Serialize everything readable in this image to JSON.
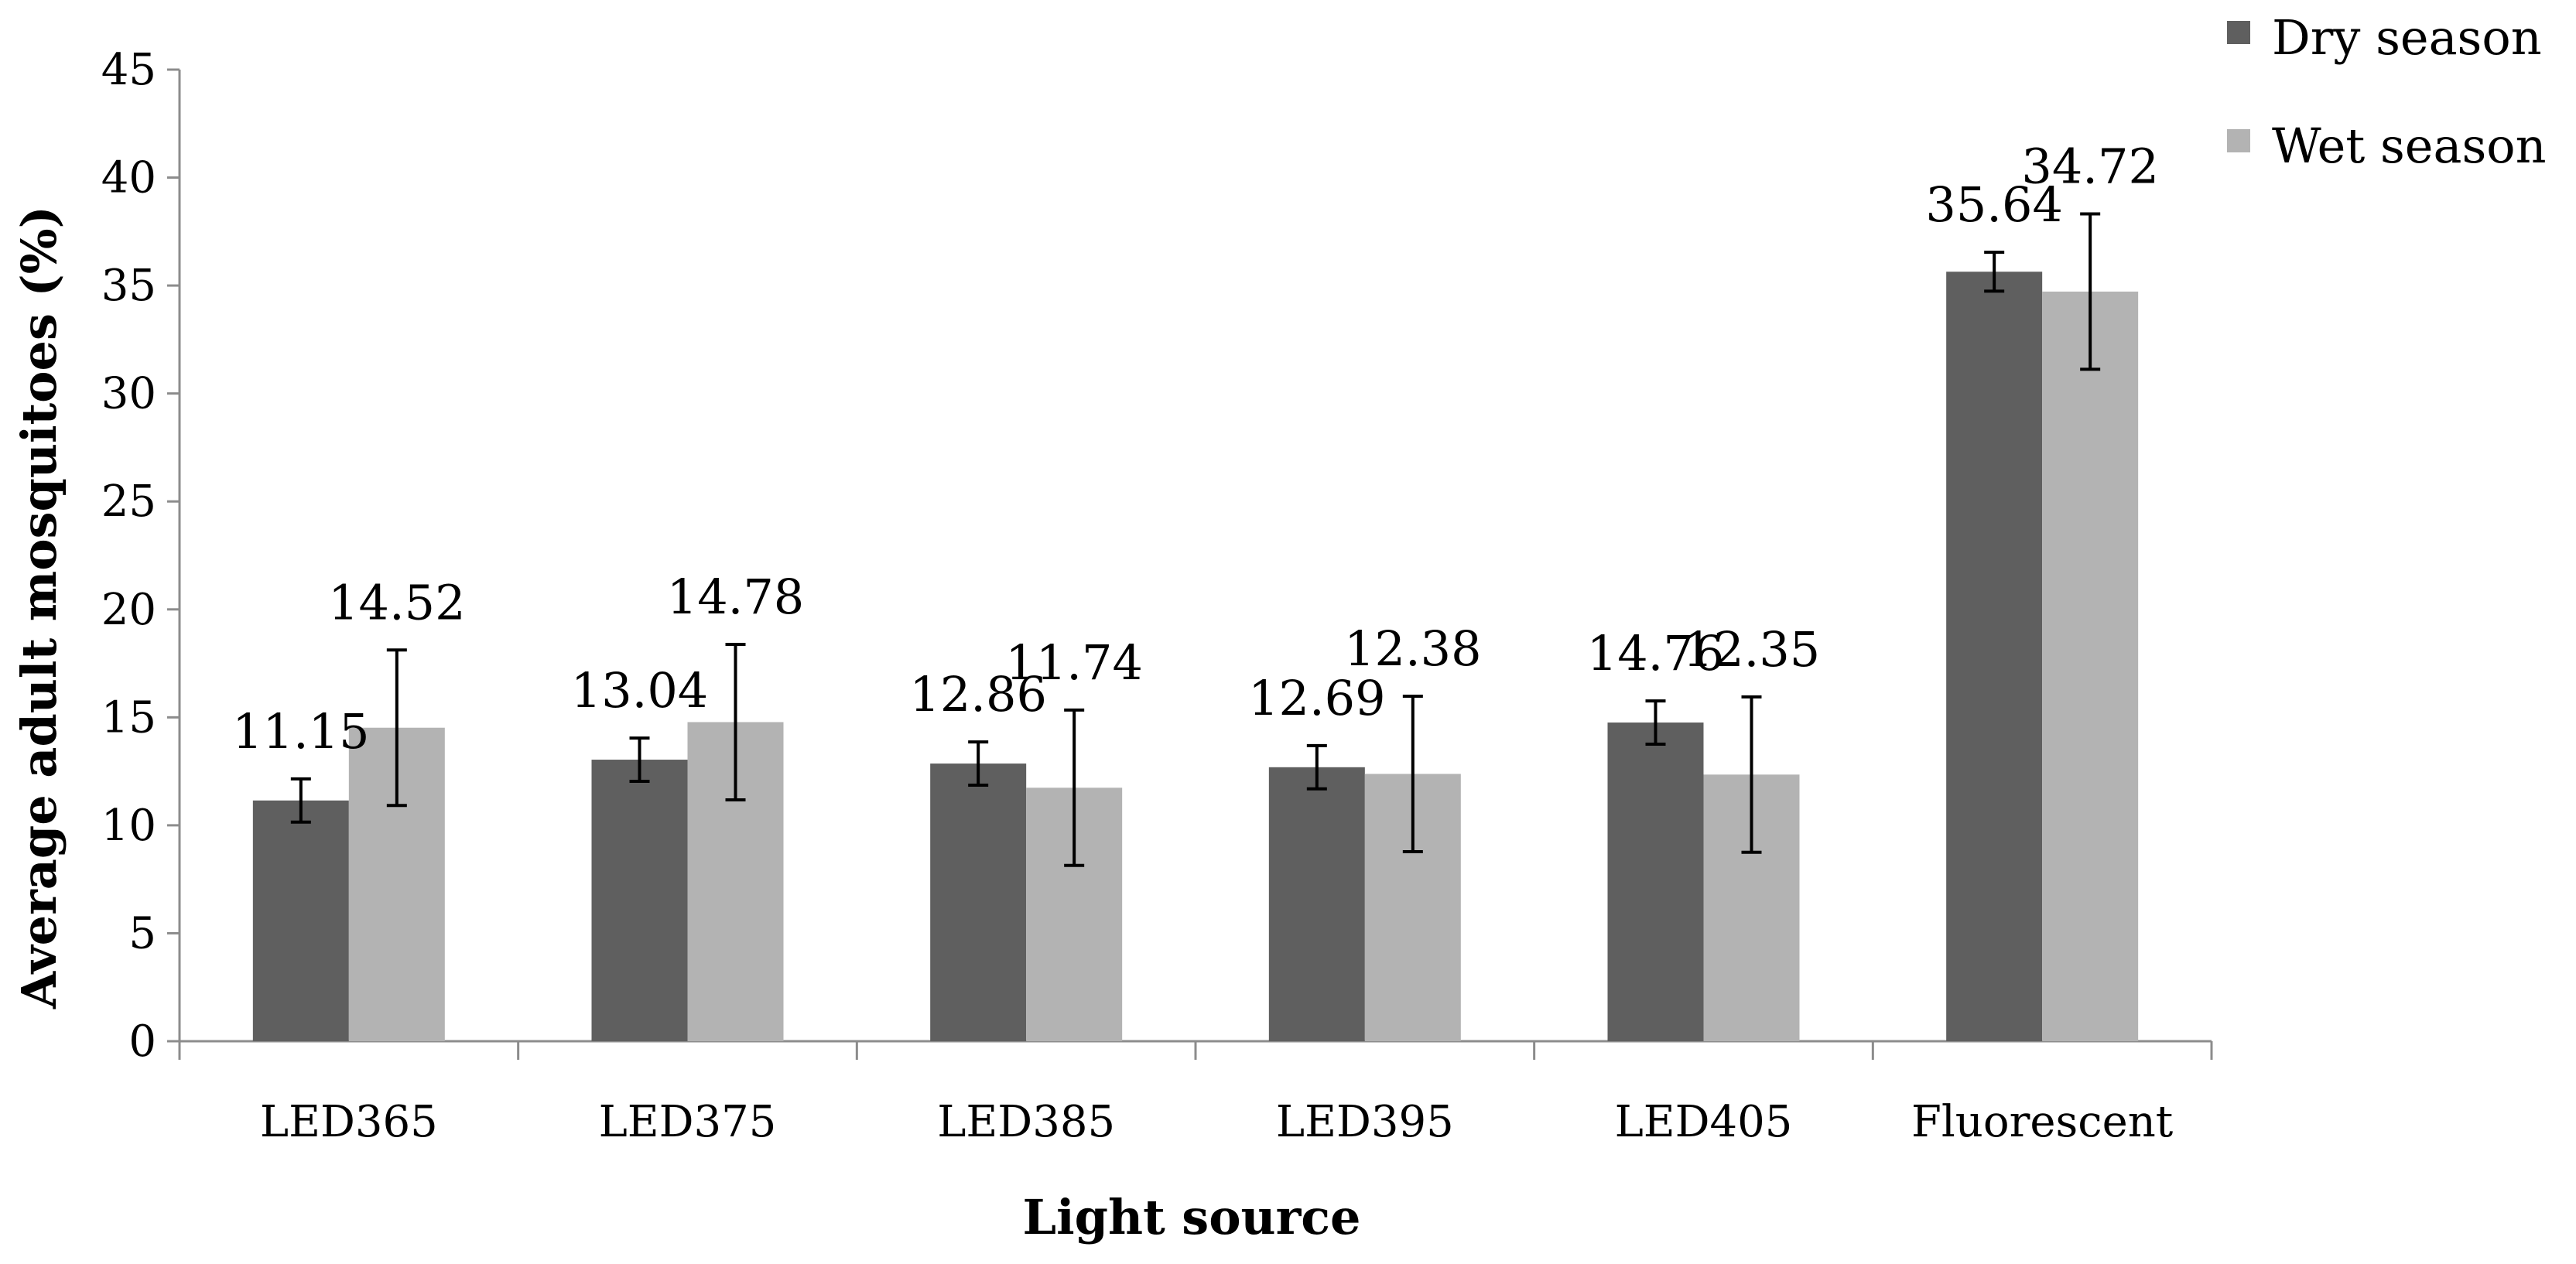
{
  "chart_data": {
    "type": "bar",
    "title": "",
    "xlabel": "Light source",
    "ylabel": "Average adult mosquitoes (%)",
    "ylim": [
      0,
      45
    ],
    "yticks": [
      0,
      5,
      10,
      15,
      20,
      25,
      30,
      35,
      40,
      45
    ],
    "grid": false,
    "legend_position": "top-right",
    "categories": [
      "LED365",
      "LED375",
      "LED385",
      "LED395",
      "LED405",
      "Fluorescent"
    ],
    "series": [
      {
        "name": "Dry season",
        "color": "#5f5f5f",
        "values": [
          11.15,
          13.04,
          12.86,
          12.69,
          14.76,
          35.64
        ],
        "labels": [
          "11.15",
          "13.04",
          "12.86",
          "12.69",
          "14.76",
          "35.64"
        ],
        "error": [
          1.0,
          1.0,
          1.0,
          1.0,
          1.0,
          0.9
        ]
      },
      {
        "name": "Wet season",
        "color": "#b3b3b3",
        "values": [
          14.52,
          14.78,
          11.74,
          12.38,
          12.35,
          34.72
        ],
        "labels": [
          "14.52",
          "14.78",
          "11.74",
          "12.38",
          "12.35",
          "34.72"
        ],
        "error": [
          3.6,
          3.6,
          3.6,
          3.6,
          3.6,
          3.6
        ]
      }
    ]
  }
}
